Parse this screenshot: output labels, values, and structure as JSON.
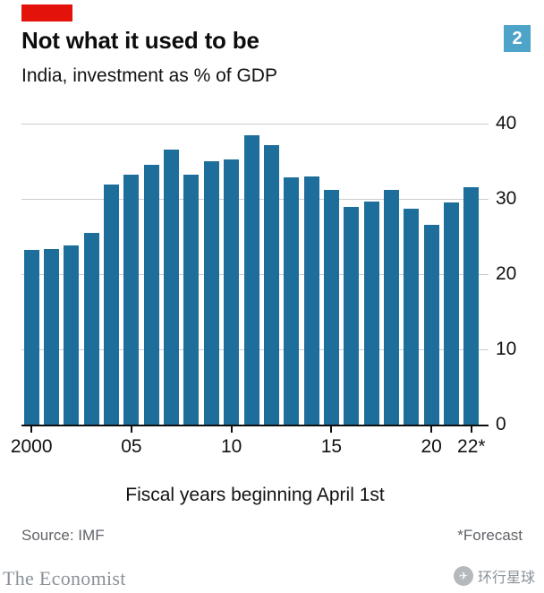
{
  "colors": {
    "red": "#e3120b",
    "bar_blue": "#1e6e9b",
    "badge_blue": "#4da3c8"
  },
  "header": {
    "title": "Not what it used to be",
    "subtitle": "India, investment as % of GDP",
    "figure_number": "2"
  },
  "chart_data": {
    "type": "bar",
    "title": "Not what it used to be",
    "subtitle": "India, investment as % of GDP",
    "categories": [
      "2000",
      "2001",
      "2002",
      "2003",
      "2004",
      "2005",
      "2006",
      "2007",
      "2008",
      "2009",
      "2010",
      "2011",
      "2012",
      "2013",
      "2014",
      "2015",
      "2016",
      "2017",
      "2018",
      "2019",
      "2020",
      "2021",
      "2022"
    ],
    "values": [
      23.2,
      23.3,
      23.8,
      25.5,
      31.9,
      33.2,
      34.5,
      36.6,
      33.2,
      35.0,
      35.2,
      38.4,
      37.2,
      32.8,
      33.0,
      31.2,
      28.9,
      29.6,
      31.2,
      28.7,
      26.6,
      29.5,
      31.5
    ],
    "ylim": [
      0,
      40
    ],
    "yticks": [
      0,
      10,
      20,
      30,
      40
    ],
    "yaxis_side": "right",
    "grid": "horizontal",
    "legend": "none",
    "xlabel": "Fiscal years beginning April 1st",
    "ylabel": "",
    "xticks": [
      {
        "index": 0,
        "label": "2000"
      },
      {
        "index": 5,
        "label": "05"
      },
      {
        "index": 10,
        "label": "10"
      },
      {
        "index": 15,
        "label": "15"
      },
      {
        "index": 20,
        "label": "20"
      },
      {
        "index": 22,
        "label": "22*"
      }
    ],
    "forecast_note": "2022 is a forecast"
  },
  "footer": {
    "source": "Source: IMF",
    "forecast_note": "*Forecast",
    "brand": "The Economist",
    "watermark": "环行星球"
  }
}
